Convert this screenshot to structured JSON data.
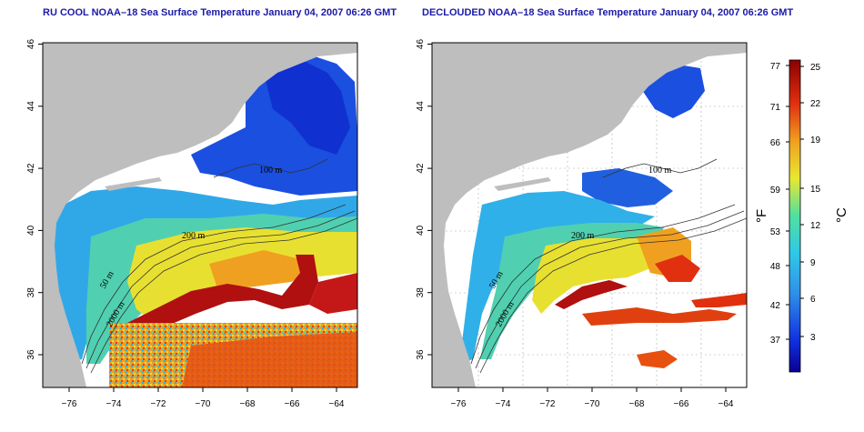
{
  "titles": {
    "left": "RU COOL NOAA–18 Sea Surface Temperature January 04, 2007 06:26 GMT",
    "right": "DECLOUDED NOAA–18 Sea Surface Temperature January 04, 2007 06:26 GMT"
  },
  "axes": {
    "x_ticks": [
      "−76",
      "−74",
      "−72",
      "−70",
      "−68",
      "−66",
      "−64"
    ],
    "y_ticks": [
      "36",
      "38",
      "40",
      "42",
      "44",
      "46"
    ]
  },
  "contour_labels": {
    "left": [
      "100 m",
      "200 m",
      "50 m",
      "2000 m"
    ],
    "right": [
      "100 m",
      "200 m",
      "50 m",
      "2000 m"
    ]
  },
  "colorbar": {
    "fahrenheit_label": "°F",
    "celsius_label": "°C",
    "fahrenheit_ticks": [
      "77",
      "71",
      "66",
      "59",
      "53",
      "48",
      "42",
      "37"
    ],
    "celsius_ticks": [
      "25",
      "22",
      "19",
      "15",
      "12",
      "9",
      "6",
      "3"
    ]
  },
  "colors": {
    "land": "#bebebe",
    "cloud": "#ffffff",
    "cold": "#1030d0",
    "cool": "#30a0e0",
    "mid": "#50d0b0",
    "warm": "#f0e030",
    "hot": "#e04010",
    "gulf_stream": "#b01010",
    "title": "#1a1aa8"
  }
}
